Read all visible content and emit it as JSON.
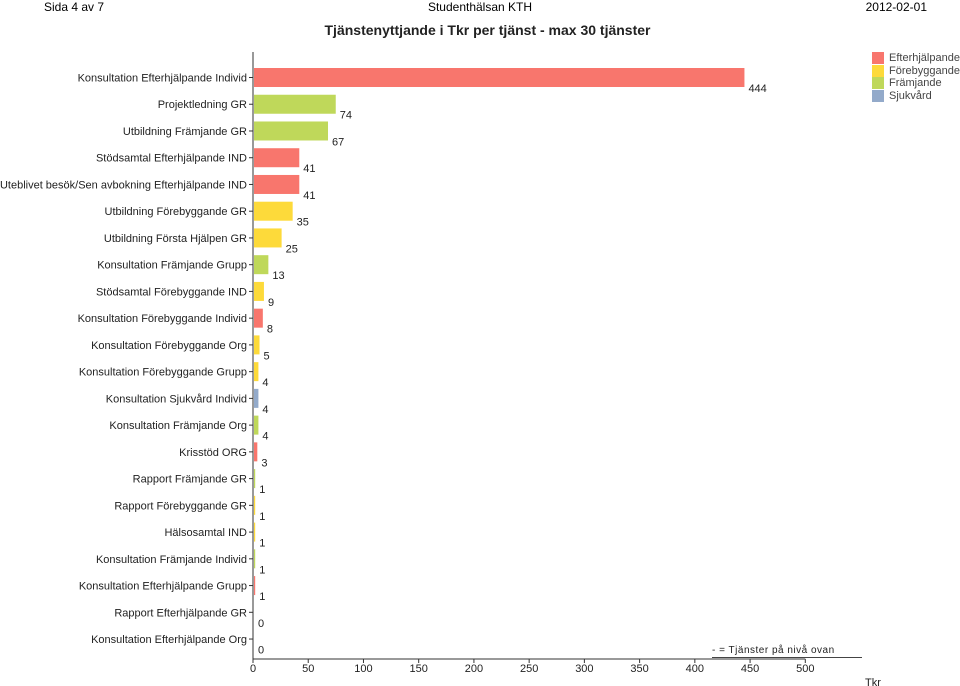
{
  "header": {
    "page": "Sida 4 av 7",
    "org": "Studenthälsan KTH",
    "date": "2012-02-01"
  },
  "footer_note": "-   = Tjänster på nivå ovan",
  "chart_data": {
    "type": "bar",
    "orientation": "horizontal",
    "title": "Tjänstenyttjande i Tkr per tjänst - max 30 tjänster",
    "xlabel": "Tkr",
    "ylabel": "",
    "xlim": [
      0,
      500
    ],
    "xticks": [
      0,
      50,
      100,
      150,
      200,
      250,
      300,
      350,
      400,
      450,
      500
    ],
    "grid": false,
    "legend_position": "top-right",
    "legend": [
      {
        "name": "Efterhjälpande",
        "color": "#F8766D"
      },
      {
        "name": "Förebyggande",
        "color": "#FDDA3A"
      },
      {
        "name": "Främjande",
        "color": "#BFD85A"
      },
      {
        "name": "Sjukvård",
        "color": "#93AACA"
      }
    ],
    "categories": [
      "Konsultation Efterhjälpande Individ",
      "Projektledning GR",
      "Utbildning Främjande GR",
      "Stödsamtal Efterhjälpande IND",
      "Uteblivet besök/Sen avbokning Efterhjälpande IND",
      "Utbildning Förebyggande GR",
      "Utbildning Första Hjälpen GR",
      "Konsultation Främjande Grupp",
      "Stödsamtal Förebyggande IND",
      "Konsultation Förebyggande Individ",
      "Konsultation Förebyggande Org",
      "Konsultation Förebyggande Grupp",
      "Konsultation Sjukvård Individ",
      "Konsultation Främjande Org",
      "Krisstöd ORG",
      "Rapport Främjande GR",
      "Rapport Förebyggande GR",
      "Hälsosamtal IND",
      "Konsultation Främjande Individ",
      "Konsultation Efterhjälpande Grupp",
      "Rapport Efterhjälpande GR",
      "Konsultation Efterhjälpande Org"
    ],
    "values": [
      444,
      74,
      67,
      41,
      41,
      35,
      25,
      13,
      9,
      8,
      5,
      4,
      4,
      4,
      3,
      1,
      1,
      1,
      1,
      1,
      0,
      0
    ],
    "value_labels": [
      "444",
      "74",
      "67",
      "41",
      "41",
      "35",
      "25",
      "13",
      "9",
      "8",
      "5",
      "4",
      "4",
      "4",
      "3",
      "1",
      "1",
      "1",
      "1",
      "1",
      "0",
      "0"
    ],
    "group_index": [
      0,
      2,
      2,
      0,
      0,
      1,
      1,
      2,
      1,
      0,
      1,
      1,
      3,
      2,
      0,
      2,
      1,
      1,
      2,
      0,
      0,
      0
    ]
  }
}
